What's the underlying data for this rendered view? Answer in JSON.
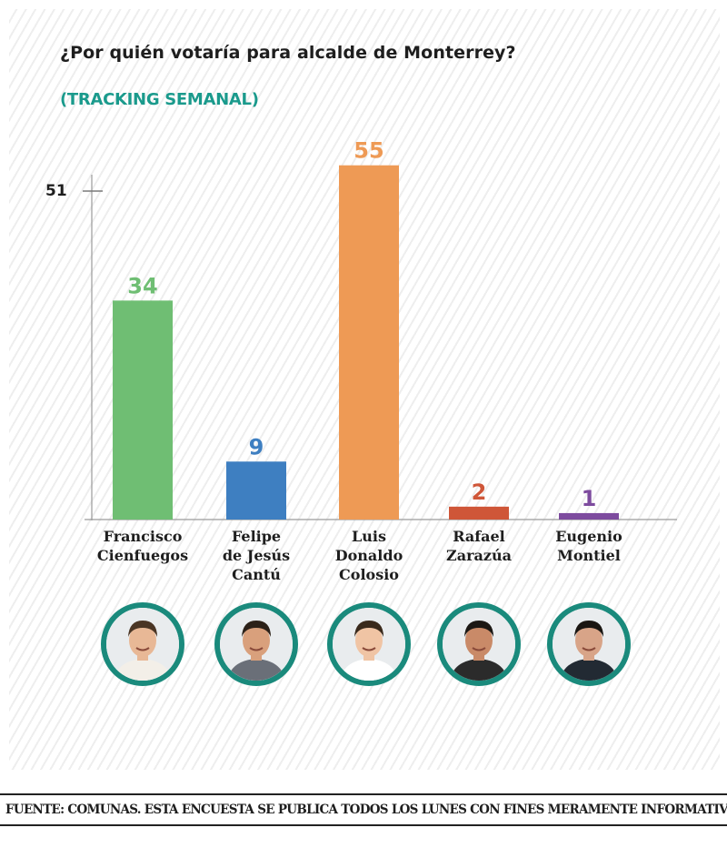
{
  "chart_data": {
    "type": "bar",
    "title": "¿Por quién votaría para alcalde de Monterrey?",
    "subtitle": "(TRACKING SEMANAL)",
    "categories": [
      "Francisco\nCienfuegos",
      "Felipe\nde Jesús\nCantú",
      "Luis\nDonaldo\nColosio",
      "Rafael\nZarazúa",
      "Eugenio\nMontiel"
    ],
    "values": [
      34,
      9,
      55,
      2,
      1
    ],
    "value_labels": [
      "34",
      "9",
      "55",
      "2",
      "1"
    ],
    "bar_colors": [
      "#6fbe73",
      "#3e7fc1",
      "#ee9a55",
      "#cf5638",
      "#7d4b9e"
    ],
    "yticks": [
      51
    ],
    "ytick_labels": [
      "51"
    ],
    "ylim": [
      0,
      55
    ],
    "grid": false,
    "legend": "none"
  },
  "colors": {
    "subtitle": "#1a9a8c",
    "photo_ring": "#1a8a7c"
  },
  "photos": [
    {
      "icon": "candidate-photo-icon"
    },
    {
      "icon": "candidate-photo-icon"
    },
    {
      "icon": "candidate-photo-icon"
    },
    {
      "icon": "candidate-photo-icon"
    },
    {
      "icon": "candidate-photo-icon"
    }
  ],
  "source": "FUENTE: COMUNAS. ESTA ENCUESTA SE PUBLICA TODOS LOS LUNES CON FINES MERAMENTE INFORMATIVOS"
}
